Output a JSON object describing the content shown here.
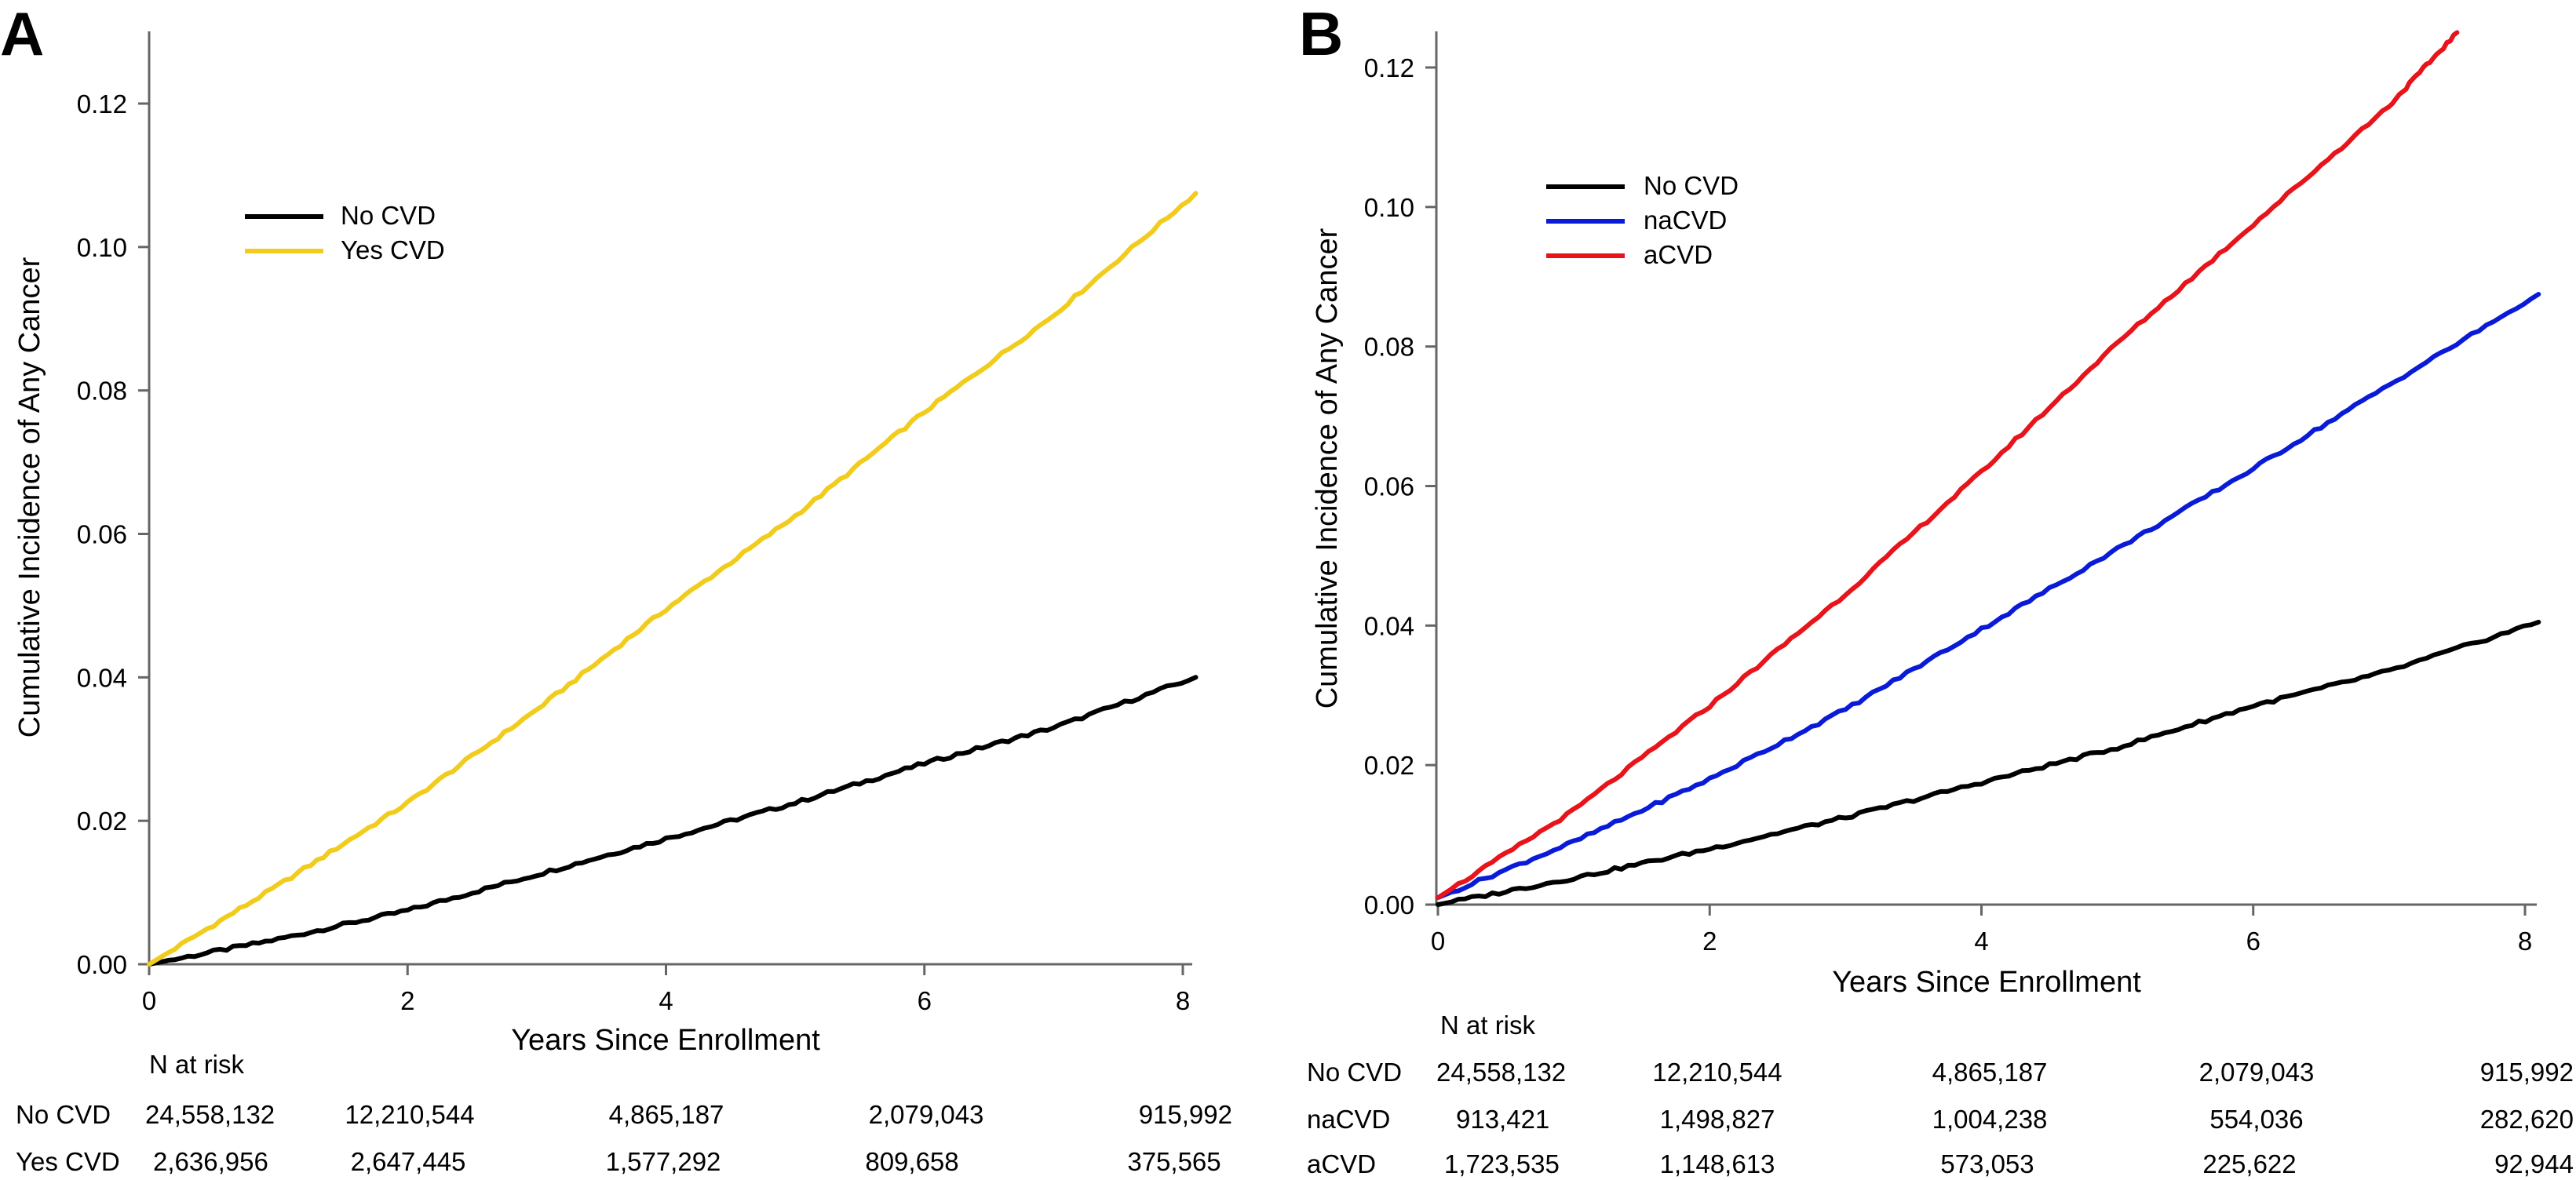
{
  "chart_data": [
    {
      "panel": "A",
      "type": "line",
      "title": "",
      "xlabel": "Years Since Enrollment",
      "ylabel": "Cumulative Incidence of Any Cancer",
      "xlim": [
        0,
        8.1
      ],
      "ylim": [
        0,
        0.13
      ],
      "xticks": [
        "0",
        "2",
        "4",
        "6",
        "8"
      ],
      "yticks": [
        "0.00",
        "0.02",
        "0.04",
        "0.06",
        "0.08",
        "0.10",
        "0.12"
      ],
      "grid": false,
      "legend_position": "upper-left",
      "series": [
        {
          "name": "No CVD",
          "color": "#000000",
          "x": [
            0,
            1,
            2,
            3,
            4,
            5,
            6,
            7,
            8.1
          ],
          "y": [
            0,
            0.0035,
            0.0075,
            0.0125,
            0.0175,
            0.0225,
            0.028,
            0.033,
            0.04
          ]
        },
        {
          "name": "Yes CVD",
          "color": "#f2cc1d",
          "x": [
            0,
            1,
            2,
            3,
            4,
            5,
            6,
            7,
            8.1
          ],
          "y": [
            0,
            0.011,
            0.0225,
            0.0355,
            0.0495,
            0.0625,
            0.077,
            0.0905,
            0.1075
          ]
        }
      ],
      "risk_table": {
        "header": "N at risk",
        "rows": [
          {
            "label": "No CVD",
            "values": [
              "24,558,132",
              "12,210,544",
              "4,865,187",
              "2,079,043",
              "915,992"
            ]
          },
          {
            "label": "Yes CVD",
            "values": [
              "2,636,956",
              "2,647,445",
              "1,577,292",
              "809,658",
              "375,565"
            ]
          }
        ]
      }
    },
    {
      "panel": "B",
      "type": "line",
      "title": "",
      "xlabel": "Years Since Enrollment",
      "ylabel": "Cumulative Incidence of Any Cancer",
      "xlim": [
        0,
        8.1
      ],
      "ylim": [
        0,
        0.125
      ],
      "xticks": [
        "0",
        "2",
        "4",
        "6",
        "8"
      ],
      "yticks": [
        "0.00",
        "0.02",
        "0.04",
        "0.06",
        "0.08",
        "0.10",
        "0.12"
      ],
      "grid": false,
      "legend_position": "upper-left",
      "series": [
        {
          "name": "No CVD",
          "color": "#000000",
          "x": [
            0,
            1,
            2,
            3,
            4,
            5,
            6,
            7,
            8.1
          ],
          "y": [
            0,
            0.0038,
            0.008,
            0.0125,
            0.0175,
            0.0225,
            0.0285,
            0.0335,
            0.0405
          ]
        },
        {
          "name": "naCVD",
          "color": "#0a1bd8",
          "x": [
            0,
            1,
            2,
            3,
            4,
            5,
            6,
            7,
            8.1
          ],
          "y": [
            0.001,
            0.009,
            0.018,
            0.028,
            0.0395,
            0.051,
            0.0625,
            0.0745,
            0.0875
          ]
        },
        {
          "name": "aCVD",
          "color": "#e8141b",
          "x": [
            0,
            1,
            2,
            3,
            4,
            5,
            6,
            7,
            7.5
          ],
          "y": [
            0.001,
            0.0135,
            0.0285,
            0.0445,
            0.062,
            0.0805,
            0.0975,
            0.1145,
            0.125
          ]
        }
      ],
      "risk_table": {
        "header": "N at risk",
        "rows": [
          {
            "label": "No CVD",
            "values": [
              "24,558,132",
              "12,210,544",
              "4,865,187",
              "2,079,043",
              "915,992"
            ]
          },
          {
            "label": "naCVD",
            "values": [
              "913,421",
              "1,498,827",
              "1,004,238",
              "554,036",
              "282,620"
            ]
          },
          {
            "label": "aCVD",
            "values": [
              "1,723,535",
              "1,148,613",
              "573,053",
              "225,622",
              "92,944"
            ]
          }
        ]
      }
    }
  ]
}
